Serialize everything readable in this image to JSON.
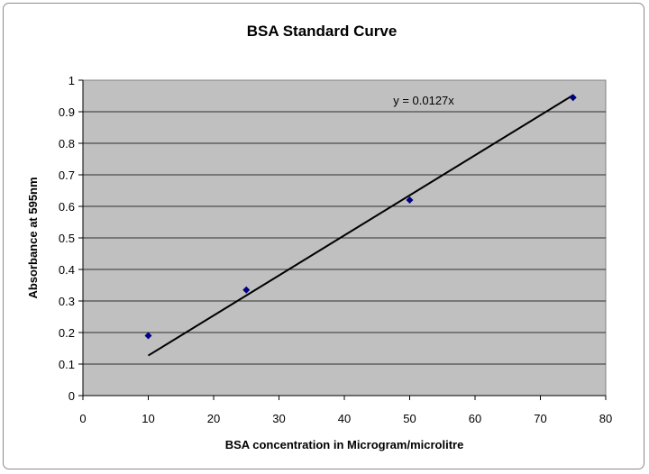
{
  "chart_data": {
    "type": "scatter",
    "title": "BSA Standard Curve",
    "xlabel": "BSA concentration in Microgram/microlitre",
    "ylabel": "Absorbance at 595nm",
    "xlim": [
      0,
      80
    ],
    "ylim": [
      0,
      1
    ],
    "xticks": [
      "0",
      "10",
      "20",
      "30",
      "40",
      "50",
      "60",
      "70",
      "80"
    ],
    "yticks": [
      "0",
      "0.1",
      "0.2",
      "0.3",
      "0.4",
      "0.5",
      "0.6",
      "0.7",
      "0.8",
      "0.9",
      "1"
    ],
    "grid": "horizontal",
    "plot_background": "#c0c0c0",
    "series": [
      {
        "marker": "diamond",
        "color": "#000080",
        "points": [
          {
            "x": 10,
            "y": 0.19
          },
          {
            "x": 25,
            "y": 0.335
          },
          {
            "x": 50,
            "y": 0.62
          },
          {
            "x": 75,
            "y": 0.945
          }
        ]
      }
    ],
    "trendline": {
      "equation": "y = 0.0127x",
      "slope": 0.0127,
      "x_range": [
        10,
        75
      ],
      "color": "#000000"
    }
  }
}
